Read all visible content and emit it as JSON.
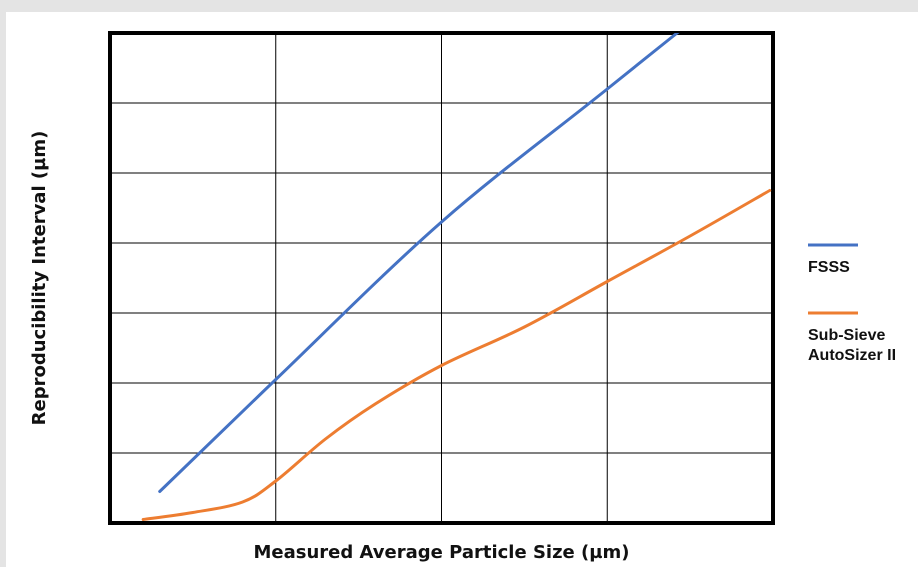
{
  "chart_data": {
    "type": "line",
    "title": "",
    "xlabel": "Measured Average Particle Size (µm)",
    "ylabel": "Reproducibility Interval (µm)",
    "xlim": [
      0,
      4
    ],
    "ylim": [
      0,
      7
    ],
    "grid": true,
    "ticks_labeled": false,
    "legend_position": "right",
    "series": [
      {
        "name": "FSSS",
        "color": "#4472c4",
        "points": [
          [
            0.3,
            0.45
          ],
          [
            1.0,
            2.05
          ],
          [
            2.0,
            4.3
          ],
          [
            3.0,
            6.2
          ],
          [
            4.0,
            8.1
          ]
        ]
      },
      {
        "name": "Sub-Sieve\nAutoSizer II",
        "color": "#ed7d31",
        "points": [
          [
            0.2,
            0.05
          ],
          [
            0.5,
            0.15
          ],
          [
            0.8,
            0.3
          ],
          [
            1.0,
            0.6
          ],
          [
            1.3,
            1.2
          ],
          [
            1.6,
            1.7
          ],
          [
            2.0,
            2.25
          ],
          [
            2.5,
            2.8
          ],
          [
            3.0,
            3.45
          ],
          [
            3.5,
            4.1
          ],
          [
            3.98,
            4.75
          ]
        ]
      }
    ]
  }
}
